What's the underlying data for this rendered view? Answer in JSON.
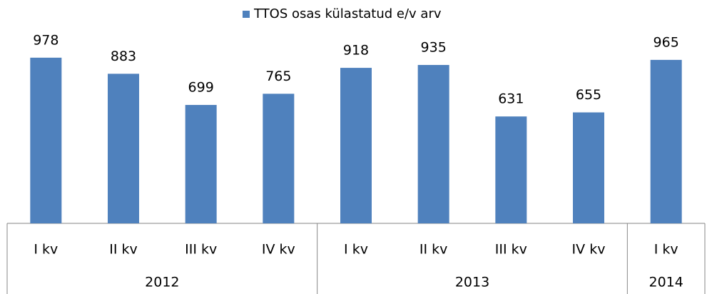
{
  "chart_data": {
    "type": "bar",
    "series_name": "TTOS osas külastatud e/v arv",
    "color": "#4f81bd",
    "legend": "top",
    "ylim": [
      0,
      1150
    ],
    "groups": [
      {
        "label": "2012",
        "categories": [
          "I kv",
          "II kv",
          "III kv",
          "IV kv"
        ],
        "values": [
          978,
          883,
          699,
          765
        ]
      },
      {
        "label": "2013",
        "categories": [
          "I kv",
          "II kv",
          "III kv",
          "IV kv"
        ],
        "values": [
          918,
          935,
          631,
          655
        ]
      },
      {
        "label": "2014",
        "categories": [
          "I kv"
        ],
        "values": [
          965
        ]
      }
    ]
  }
}
